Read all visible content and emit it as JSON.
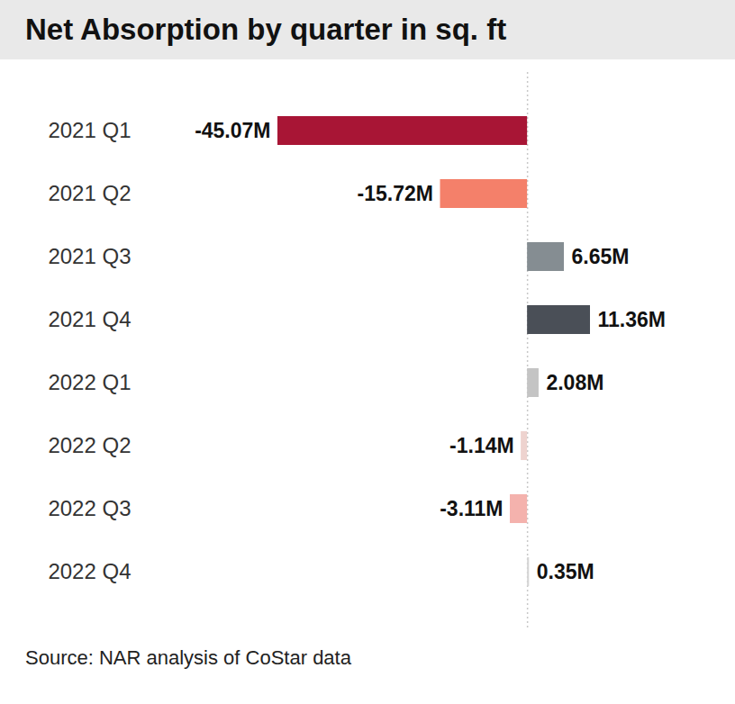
{
  "chart_data": {
    "type": "bar",
    "orientation": "horizontal",
    "title": "Net Absorption by quarter in sq. ft",
    "caption": "Source: NAR analysis of CoStar data",
    "categories": [
      "2021 Q1",
      "2021 Q2",
      "2021 Q3",
      "2021 Q4",
      "2022 Q1",
      "2022 Q2",
      "2022 Q3",
      "2022 Q4"
    ],
    "values": [
      -45.07,
      -15.72,
      6.65,
      11.36,
      2.08,
      -1.14,
      -3.11,
      0.35
    ],
    "value_labels": [
      "-45.07M",
      "-15.72M",
      "6.65M",
      "11.36M",
      "2.08M",
      "-1.14M",
      "-3.11M",
      "0.35M"
    ],
    "colors": [
      "#a81535",
      "#f4806a",
      "#858d92",
      "#4a4f57",
      "#c4c4c4",
      "#eed3cf",
      "#f4b2ad",
      "#d6d6d6"
    ],
    "data_labels": true,
    "tick_labels": "y",
    "grid": false
  }
}
